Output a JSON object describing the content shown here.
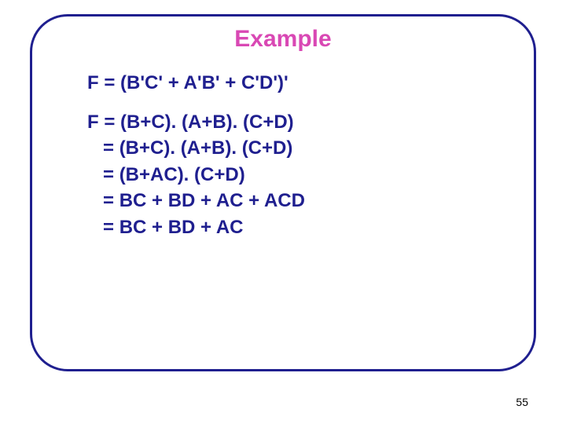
{
  "frame": {
    "border_color": "#1f1f8f"
  },
  "title": {
    "text": "Example",
    "color": "#d948b4",
    "font_size": 30
  },
  "content": {
    "color": "#1f1f8f",
    "font_size": 24,
    "lines": [
      "F = (B'C' + A'B' + C'D')'",
      "",
      "F = (B+C). (A+B). (C+D)",
      "   = (B+C). (A+B). (C+D)",
      "   = (B+AC). (C+D)",
      "   = BC + BD + AC + ACD",
      "   = BC + BD + AC"
    ]
  },
  "page_number": {
    "value": "55",
    "font_size": 14
  }
}
